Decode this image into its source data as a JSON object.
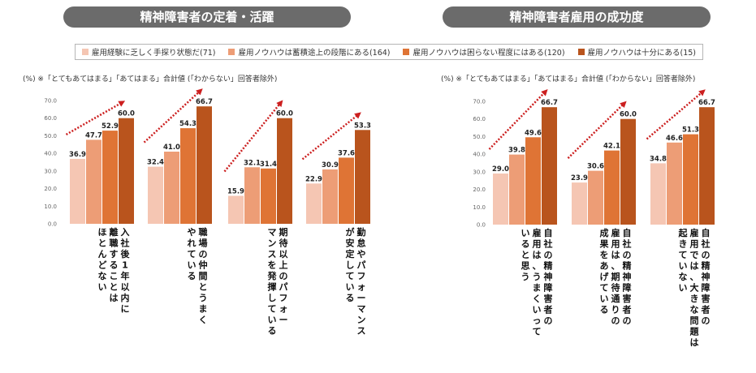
{
  "titles": {
    "left": "精神障害者の定着・活躍",
    "right": "精神障害者雇用の成功度"
  },
  "legend": [
    {
      "label": "雇用経験に乏しく手探り状態だ(71)",
      "color": "#f5c6b3"
    },
    {
      "label": "雇用ノウハウは蓄積途上の段階にある(164)",
      "color": "#ed9d76"
    },
    {
      "label": "雇用ノウハウは困らない程度にはある(120)",
      "color": "#df7435"
    },
    {
      "label": "雇用ノウハウは十分にある(15)",
      "color": "#b9541d"
    }
  ],
  "notes": {
    "left": "(%) ※「とてもあてはまる」「あてはまる」合計値 (「わからない」回答者除外)",
    "right": "(%) ※「とてもあてはまる」「あてはまる」合計値 (「わからない」回答者除外)"
  },
  "chart_data": [
    {
      "type": "bar",
      "title": "精神障害者の定着・活躍",
      "ylim": [
        0,
        70
      ],
      "yticks": [
        "0.0",
        "10.0",
        "20.0",
        "30.0",
        "40.0",
        "50.0",
        "60.0",
        "70.0"
      ],
      "categories": [
        [
          "入社後1年以内に",
          "離職することは",
          "ほとんどない"
        ],
        [
          "職場の仲間とうまく",
          "やれている"
        ],
        [
          "期待以上のパフォー",
          "マンスを発揮している"
        ],
        [
          "勤怠やパフォーマンス",
          "が安定している"
        ]
      ],
      "series": [
        {
          "name": "雇用経験に乏しく手探り状態だ(71)",
          "values": [
            36.9,
            32.4,
            15.9,
            22.9
          ]
        },
        {
          "name": "雇用ノウハウは蓄積途上の段階にある(164)",
          "values": [
            47.7,
            41.0,
            32.1,
            30.9
          ]
        },
        {
          "name": "雇用ノウハウは困らない程度にはある(120)",
          "values": [
            52.9,
            54.3,
            31.4,
            37.6
          ]
        },
        {
          "name": "雇用ノウハウは十分にある(15)",
          "values": [
            60.0,
            66.7,
            60.0,
            53.3
          ]
        }
      ],
      "grid": false
    },
    {
      "type": "bar",
      "title": "精神障害者雇用の成功度",
      "ylim": [
        0,
        70
      ],
      "yticks": [
        "0.0",
        "10.0",
        "20.0",
        "30.0",
        "40.0",
        "50.0",
        "60.0",
        "70.0"
      ],
      "categories": [
        [
          "自社の精神障害者の",
          "雇用は、うまくいって",
          "いると思う"
        ],
        [
          "自社の精神障害者の",
          "雇用は、期待通りの",
          "成果をあげている"
        ],
        [
          "自社の精神障害者の",
          "雇用では、大きな問題は",
          "起きていない"
        ]
      ],
      "series": [
        {
          "name": "雇用経験に乏しく手探り状態だ(71)",
          "values": [
            29.0,
            23.9,
            34.8
          ]
        },
        {
          "name": "雇用ノウハウは蓄積途上の段階にある(164)",
          "values": [
            39.8,
            30.6,
            46.6
          ]
        },
        {
          "name": "雇用ノウハウは困らない程度にはある(120)",
          "values": [
            49.6,
            42.1,
            51.3
          ]
        },
        {
          "name": "雇用ノウハウは十分にある(15)",
          "values": [
            66.7,
            60.0,
            66.7
          ]
        }
      ],
      "grid": false
    }
  ]
}
